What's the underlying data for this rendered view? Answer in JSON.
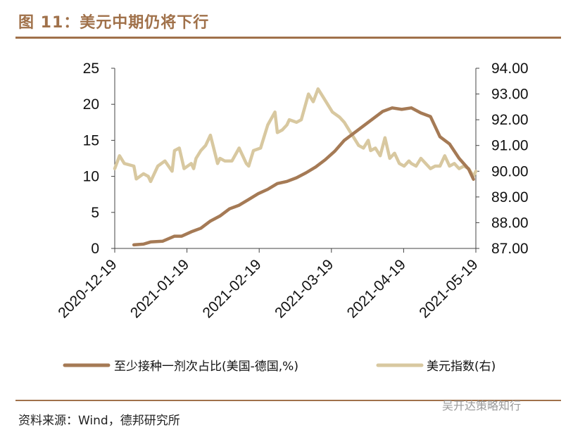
{
  "figure_title": "图 11：美元中期仍将下行",
  "source": "资料来源：Wind，德邦研究所",
  "watermark": "吴开达策略知行",
  "colors": {
    "accent": "#a0714a",
    "series_vax": "#a57a55",
    "series_usd": "#d8c8a0"
  },
  "chart_data": {
    "type": "line",
    "title": "美元中期仍将下行",
    "xlabel": "",
    "ylabel_left": "",
    "ylabel_right": "",
    "x_ticks": [
      "2020-12-19",
      "2021-01-19",
      "2021-02-19",
      "2021-03-19",
      "2021-04-19",
      "2021-05-19"
    ],
    "x_range": [
      0,
      151
    ],
    "y_left": {
      "range": [
        0,
        25
      ],
      "ticks": [
        "0",
        "5",
        "10",
        "15",
        "20",
        "25"
      ]
    },
    "y_right": {
      "range": [
        87,
        94
      ],
      "ticks": [
        "87.00",
        "88.00",
        "89.00",
        "90.00",
        "91.00",
        "92.00",
        "93.00",
        "94.00"
      ]
    },
    "legend_position": "bottom",
    "series": [
      {
        "name": "至少接种一剂次占比(美国-德国,%)",
        "axis": "left",
        "x": [
          8,
          12,
          15,
          20,
          25,
          28,
          32,
          36,
          40,
          44,
          48,
          52,
          56,
          60,
          64,
          68,
          72,
          76,
          80,
          84,
          88,
          92,
          96,
          100,
          104,
          108,
          112,
          116,
          120,
          124,
          128,
          132,
          136,
          140,
          144,
          148,
          150
        ],
        "values": [
          0.5,
          0.6,
          0.9,
          1.0,
          1.7,
          1.7,
          2.3,
          2.8,
          3.8,
          4.5,
          5.5,
          6.0,
          6.8,
          7.6,
          8.2,
          9.0,
          9.3,
          9.8,
          10.5,
          11.3,
          12.3,
          13.5,
          15.0,
          16.0,
          17.0,
          18.0,
          19.0,
          19.5,
          19.3,
          19.5,
          18.8,
          18.3,
          15.5,
          14.5,
          12.5,
          11.0,
          9.6
        ]
      },
      {
        "name": "美元指数(右)",
        "axis": "right",
        "x": [
          0,
          2,
          4,
          8,
          9,
          12,
          14,
          15,
          18,
          21,
          24,
          25,
          27,
          29,
          32,
          33,
          34,
          36,
          38,
          40,
          43,
          44,
          46,
          49,
          52,
          54,
          55,
          56,
          58,
          61,
          64,
          67,
          68,
          70,
          72,
          73,
          76,
          78,
          81,
          83,
          85,
          87,
          89,
          91,
          94,
          96,
          98,
          100,
          102,
          104,
          106,
          107,
          109,
          111,
          113,
          115,
          117,
          119,
          121,
          123,
          124,
          126,
          128,
          130,
          132,
          134,
          136,
          138,
          140,
          142,
          144,
          146,
          148,
          150,
          151
        ],
        "values": [
          90.1,
          90.6,
          90.3,
          90.2,
          89.7,
          89.9,
          89.8,
          89.6,
          90.2,
          90.4,
          90.0,
          90.8,
          90.9,
          90.1,
          90.3,
          90.1,
          90.5,
          90.8,
          91.0,
          91.4,
          90.3,
          90.5,
          90.4,
          90.4,
          90.9,
          90.5,
          90.3,
          90.2,
          90.8,
          90.9,
          91.8,
          92.3,
          91.5,
          91.6,
          91.8,
          92.0,
          91.9,
          92.0,
          93.0,
          92.7,
          93.2,
          92.9,
          92.6,
          92.3,
          92.1,
          91.9,
          91.6,
          91.3,
          91.0,
          90.9,
          91.2,
          90.8,
          90.9,
          90.6,
          91.3,
          90.5,
          90.7,
          90.3,
          90.2,
          90.4,
          90.3,
          90.2,
          90.5,
          90.3,
          90.1,
          90.2,
          90.2,
          90.6,
          90.2,
          90.3,
          90.1,
          90.2,
          90.1,
          89.8,
          90.0
        ]
      }
    ]
  }
}
